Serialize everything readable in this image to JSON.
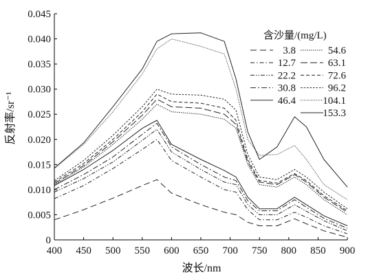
{
  "chart_data": {
    "type": "line",
    "xlabel": "波长/nm",
    "ylabel": "反射率/sr⁻¹",
    "xlim": [
      400,
      900
    ],
    "ylim": [
      0,
      0.045
    ],
    "xticks": [
      "400",
      "450",
      "500",
      "550",
      "600",
      "650",
      "700",
      "750",
      "800",
      "850",
      "900"
    ],
    "yticks": [
      "0",
      "0.005",
      "0.010",
      "0.015",
      "0.020",
      "0.025",
      "0.030",
      "0.035",
      "0.040",
      "0.045"
    ],
    "legend": {
      "title": "含沙量/(mg/L)",
      "placement": "top-right"
    },
    "grid": false,
    "x": [
      400,
      450,
      500,
      550,
      575,
      600,
      650,
      690,
      710,
      730,
      750,
      780,
      810,
      830,
      860,
      900
    ],
    "series": [
      {
        "name": "3.8",
        "dash": "9,5",
        "values": [
          0.004,
          0.006,
          0.0083,
          0.0108,
          0.012,
          0.0093,
          0.007,
          0.0055,
          0.005,
          0.0035,
          0.0028,
          0.0028,
          0.0042,
          0.0032,
          0.0018,
          0.0005
        ]
      },
      {
        "name": "12.7",
        "dash": "6,3,1.5,3",
        "values": [
          0.0082,
          0.0108,
          0.0142,
          0.018,
          0.02,
          0.0158,
          0.0125,
          0.01,
          0.0095,
          0.006,
          0.004,
          0.004,
          0.0055,
          0.0045,
          0.0028,
          0.0012
        ]
      },
      {
        "name": "22.2",
        "dash": "6,2,1.5,2,1.5,2",
        "values": [
          0.0095,
          0.0122,
          0.0155,
          0.0198,
          0.022,
          0.0175,
          0.014,
          0.0115,
          0.011,
          0.007,
          0.005,
          0.005,
          0.007,
          0.0057,
          0.0038,
          0.0018
        ]
      },
      {
        "name": "30.8",
        "dash": "8,3,2,3",
        "values": [
          0.01,
          0.013,
          0.0165,
          0.021,
          0.0232,
          0.0185,
          0.015,
          0.0125,
          0.0118,
          0.0078,
          0.0058,
          0.0058,
          0.008,
          0.0065,
          0.0043,
          0.0023
        ]
      },
      {
        "name": "46.4",
        "dash": "",
        "values": [
          0.0108,
          0.014,
          0.0178,
          0.0222,
          0.0238,
          0.019,
          0.016,
          0.0138,
          0.0125,
          0.0085,
          0.0062,
          0.0062,
          0.0085,
          0.007,
          0.0048,
          0.0028
        ]
      },
      {
        "name": "54.6",
        "dash": "1.5,1.5",
        "values": [
          0.011,
          0.0145,
          0.019,
          0.024,
          0.027,
          0.0255,
          0.025,
          0.024,
          0.0222,
          0.015,
          0.011,
          0.0105,
          0.0125,
          0.011,
          0.008,
          0.005
        ]
      },
      {
        "name": "63.1",
        "dash": "10,4",
        "values": [
          0.0112,
          0.0148,
          0.0195,
          0.0248,
          0.028,
          0.0265,
          0.0262,
          0.025,
          0.023,
          0.0155,
          0.0115,
          0.011,
          0.013,
          0.0115,
          0.0085,
          0.0055
        ]
      },
      {
        "name": "72.6",
        "dash": "5,3",
        "values": [
          0.0115,
          0.0152,
          0.02,
          0.0255,
          0.029,
          0.0275,
          0.0272,
          0.0262,
          0.0238,
          0.016,
          0.0118,
          0.0113,
          0.0132,
          0.0118,
          0.0088,
          0.0058
        ]
      },
      {
        "name": "96.2",
        "dash": "2.5,2",
        "values": [
          0.0118,
          0.0158,
          0.0208,
          0.0265,
          0.03,
          0.029,
          0.0288,
          0.028,
          0.0258,
          0.017,
          0.0125,
          0.012,
          0.014,
          0.0125,
          0.0095,
          0.0062
        ]
      },
      {
        "name": "104.1",
        "dash": "1,1.5",
        "values": [
          0.0142,
          0.019,
          0.0255,
          0.033,
          0.038,
          0.04,
          0.0385,
          0.037,
          0.03,
          0.02,
          0.0168,
          0.017,
          0.0188,
          0.016,
          0.011,
          0.008
        ]
      },
      {
        "name": "153.3",
        "dash": "",
        "values": [
          0.0143,
          0.0193,
          0.0265,
          0.034,
          0.0395,
          0.041,
          0.0412,
          0.0395,
          0.032,
          0.0215,
          0.016,
          0.0185,
          0.0245,
          0.0225,
          0.016,
          0.0105
        ]
      }
    ]
  }
}
